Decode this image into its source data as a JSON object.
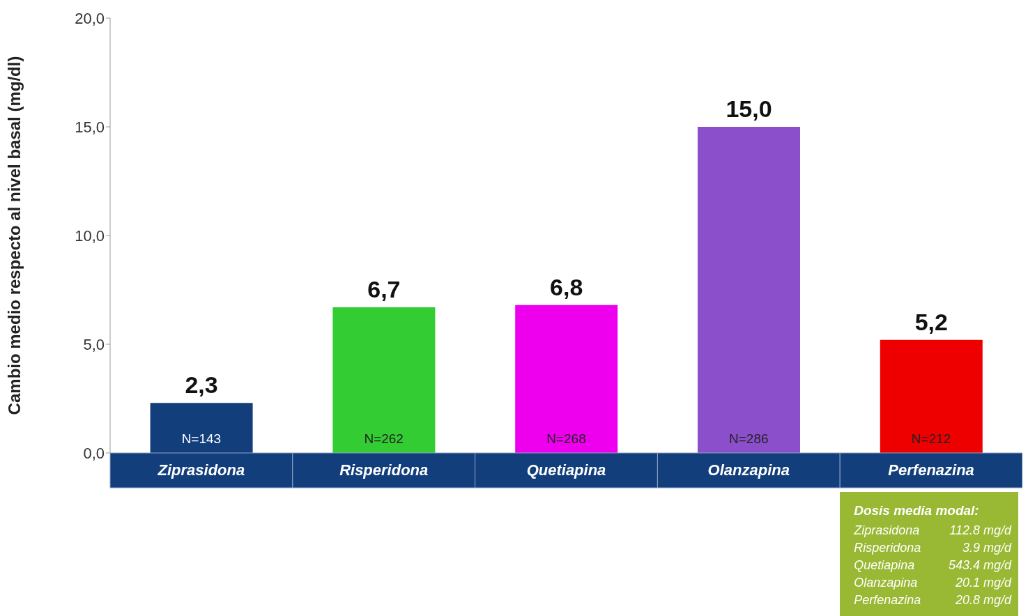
{
  "chart_data": {
    "type": "bar",
    "ylabel": "Cambio medio respecto al nivel basal (mg/dl)",
    "categories": [
      "Ziprasidona",
      "Risperidona",
      "Quetiapina",
      "Olanzapina",
      "Perfenazina"
    ],
    "values": [
      2.3,
      6.7,
      6.8,
      15.0,
      5.2
    ],
    "colors": [
      "#123e7c",
      "#33cc33",
      "#ee00ee",
      "#8c4fcc",
      "#ee0000"
    ],
    "value_labels": [
      "2,3",
      "6,7",
      "6,8",
      "15,0",
      "5,2"
    ],
    "ylim": [
      0,
      20
    ],
    "yticks": [
      {
        "value": 0,
        "label": "0,0"
      },
      {
        "value": 5,
        "label": "5,0"
      },
      {
        "value": 10,
        "label": "10,0"
      },
      {
        "value": 15,
        "label": "15,0"
      },
      {
        "value": 20,
        "label": "20,0"
      }
    ],
    "annotations": [
      "N=143",
      "N=262",
      "N=268",
      "N=286",
      "N=212",
      "Dosis media modal:",
      "Ziprasidona 112.8 mg/d",
      "Risperidona 3.9 mg/d",
      "Quetiapina 543.4 mg/d",
      "Olanzapina 20.1 mg/d",
      "Perfenazina 20.8 mg/d"
    ]
  }
}
